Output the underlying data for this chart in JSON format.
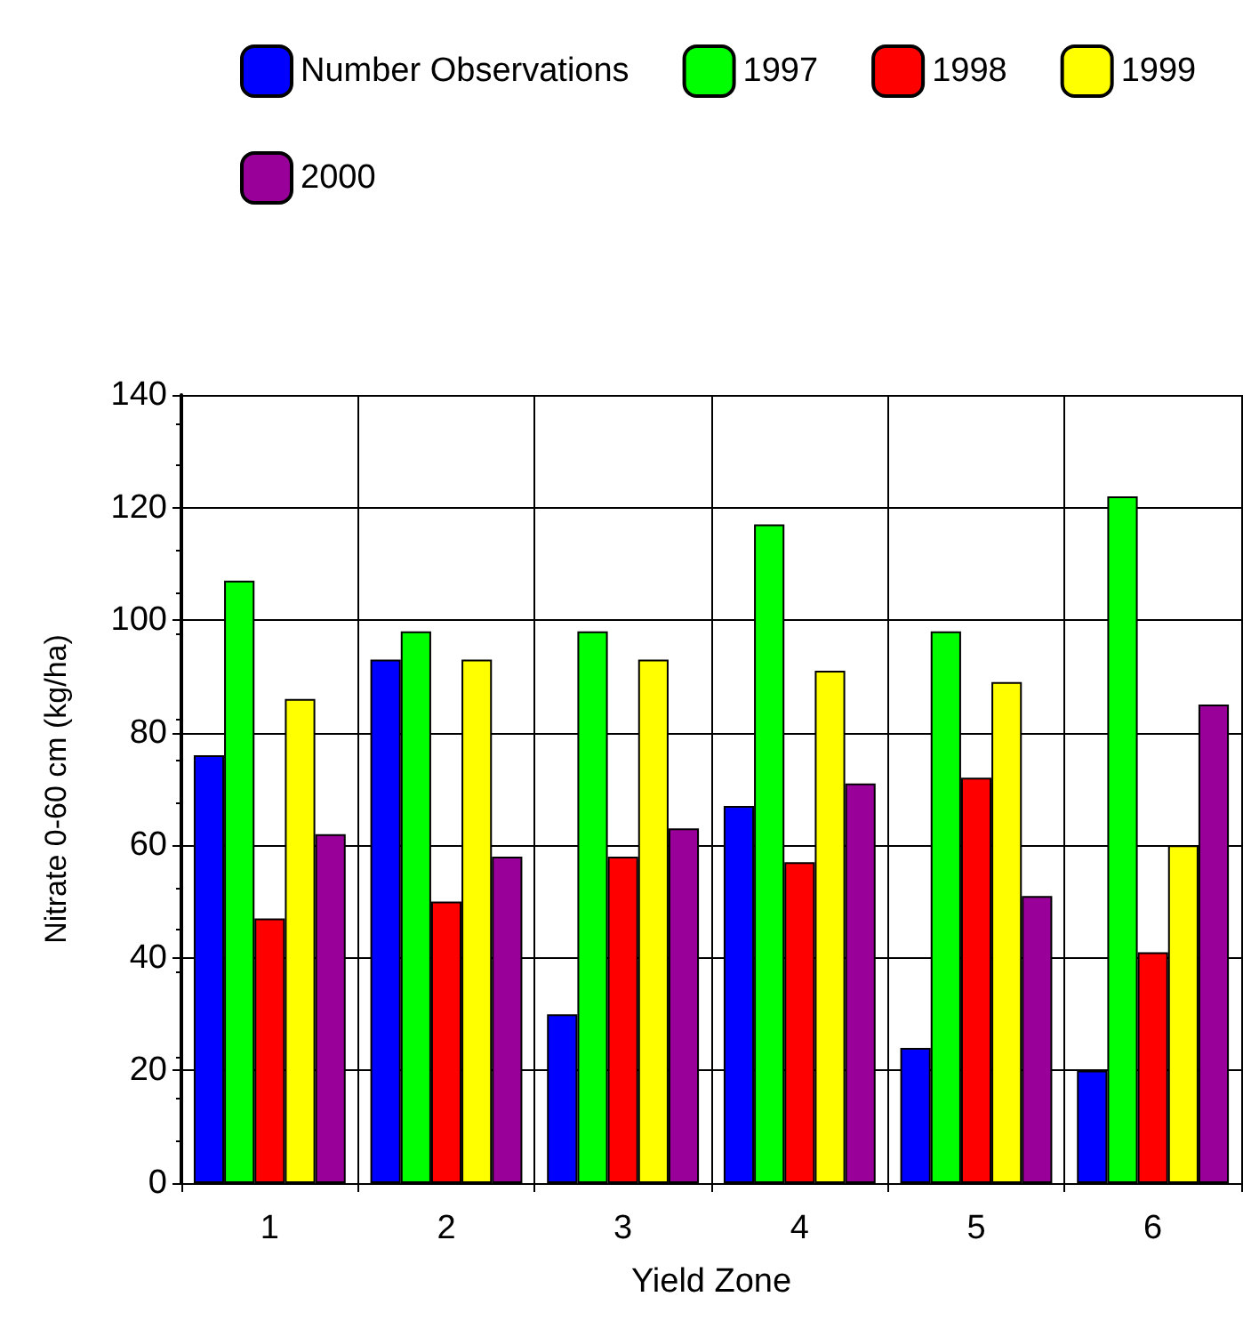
{
  "chart_data": {
    "type": "bar",
    "xlabel": "Yield Zone",
    "ylabel": "Nitrate 0-60 cm (kg/ha)",
    "categories": [
      "1",
      "2",
      "3",
      "4",
      "5",
      "6"
    ],
    "series": [
      {
        "name": "Number Observations",
        "color": "#0000ff",
        "values": [
          76,
          93,
          30,
          67,
          24,
          20
        ]
      },
      {
        "name": "1997",
        "color": "#00ff00",
        "values": [
          107,
          98,
          98,
          117,
          98,
          122
        ]
      },
      {
        "name": "1998",
        "color": "#ff0000",
        "values": [
          47,
          50,
          58,
          57,
          72,
          41
        ]
      },
      {
        "name": "1999",
        "color": "#ffff00",
        "values": [
          86,
          93,
          93,
          91,
          89,
          60
        ]
      },
      {
        "name": "2000",
        "color": "#990099",
        "values": [
          62,
          58,
          63,
          71,
          51,
          85
        ]
      }
    ],
    "ylim": [
      0,
      140
    ],
    "yticks": [
      0,
      20,
      40,
      60,
      80,
      100,
      120,
      140
    ],
    "grid": true,
    "legend": "top"
  }
}
